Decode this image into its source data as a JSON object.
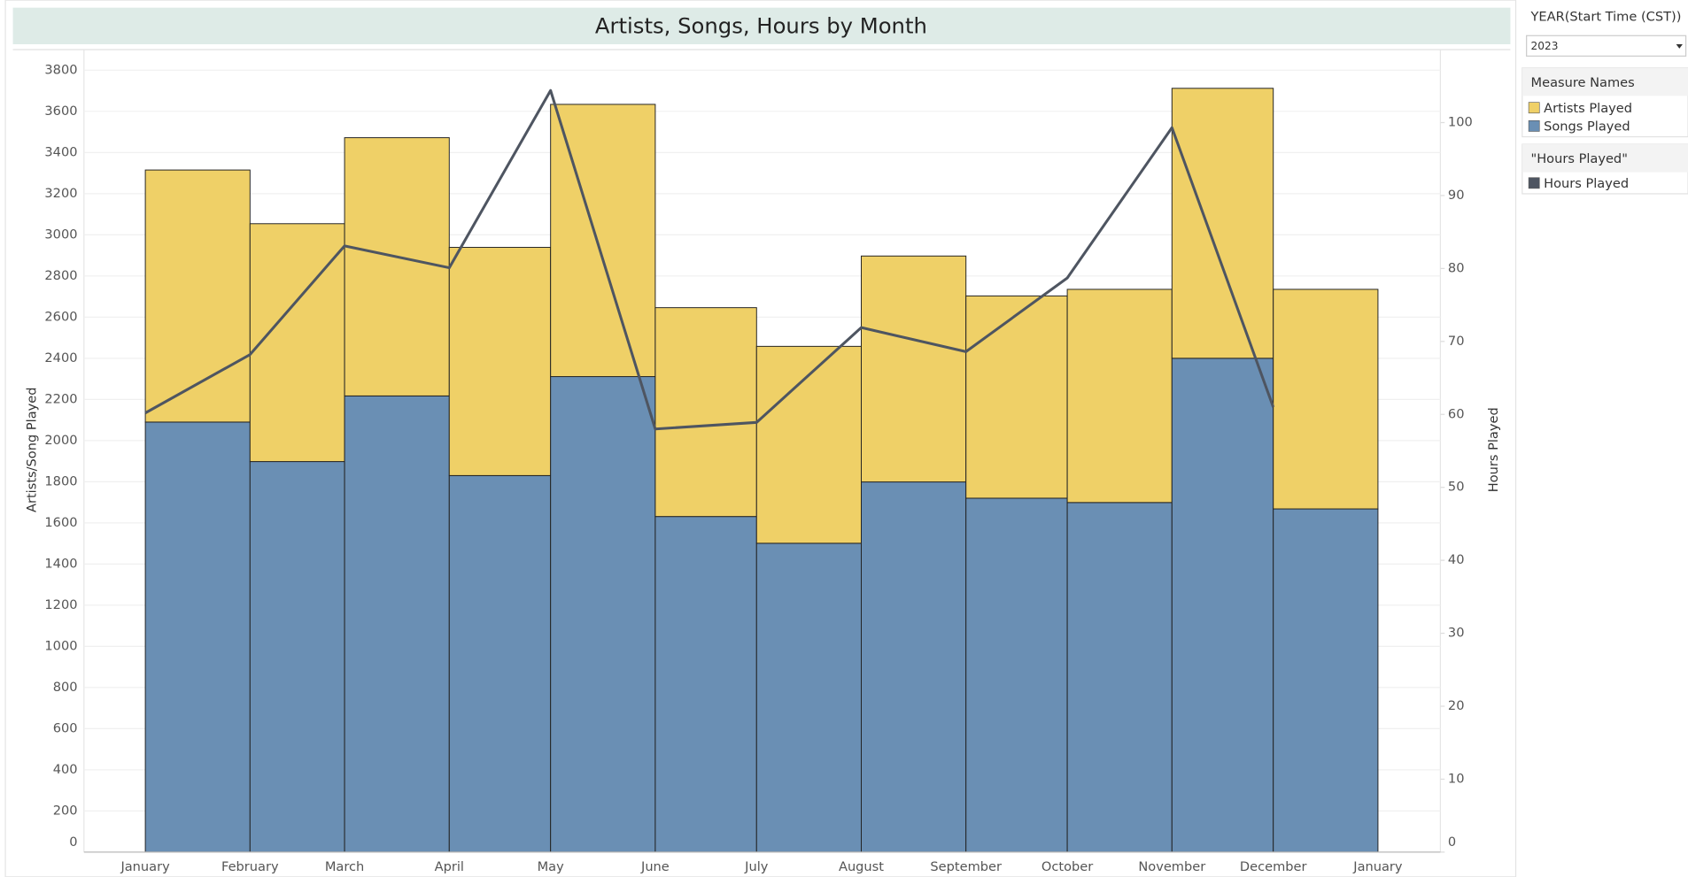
{
  "chart_data": {
    "type": "bar",
    "title": "Artists, Songs, Hours by Month",
    "y_label": "Artists/Song Played",
    "y2_label": "Hours Played",
    "categories": [
      "January",
      "February",
      "March",
      "April",
      "May",
      "June",
      "July",
      "August",
      "September",
      "October",
      "November",
      "December",
      "January"
    ],
    "series": [
      {
        "name": "Artists Played",
        "color": "#efd067",
        "kind": "bar",
        "values": [
          1225,
          1156,
          1255,
          1109,
          1323,
          1015,
          957,
          1098,
          983,
          1036,
          1312,
          1067,
          null
        ]
      },
      {
        "name": "Songs Played",
        "color": "#6a8fb4",
        "kind": "bar",
        "values": [
          2090,
          1898,
          2217,
          1830,
          2311,
          1631,
          1501,
          1799,
          1720,
          1699,
          2400,
          1668,
          null
        ]
      },
      {
        "name": "Hours Played",
        "color": "#4e5561",
        "kind": "line",
        "axis": "y2",
        "values": [
          60.2,
          68.2,
          83.1,
          80.1,
          104.4,
          58.0,
          58.9,
          71.9,
          68.6,
          78.7,
          99.3,
          61.0,
          null
        ]
      }
    ],
    "ylim": [
      0,
      3900
    ],
    "yticks": [
      0,
      200,
      400,
      600,
      800,
      1000,
      1200,
      1400,
      1600,
      1800,
      2000,
      2200,
      2400,
      2600,
      2800,
      3000,
      3200,
      3400,
      3600,
      3800
    ],
    "y2lim": [
      0,
      110
    ],
    "y2ticks": [
      0,
      10,
      20,
      30,
      40,
      50,
      60,
      70,
      80,
      90,
      100
    ],
    "grid": true,
    "filter": {
      "title": "YEAR(Start Time (CST))",
      "value": "2023"
    },
    "legend_titles": [
      "Measure Names",
      "\"Hours Played\""
    ]
  }
}
